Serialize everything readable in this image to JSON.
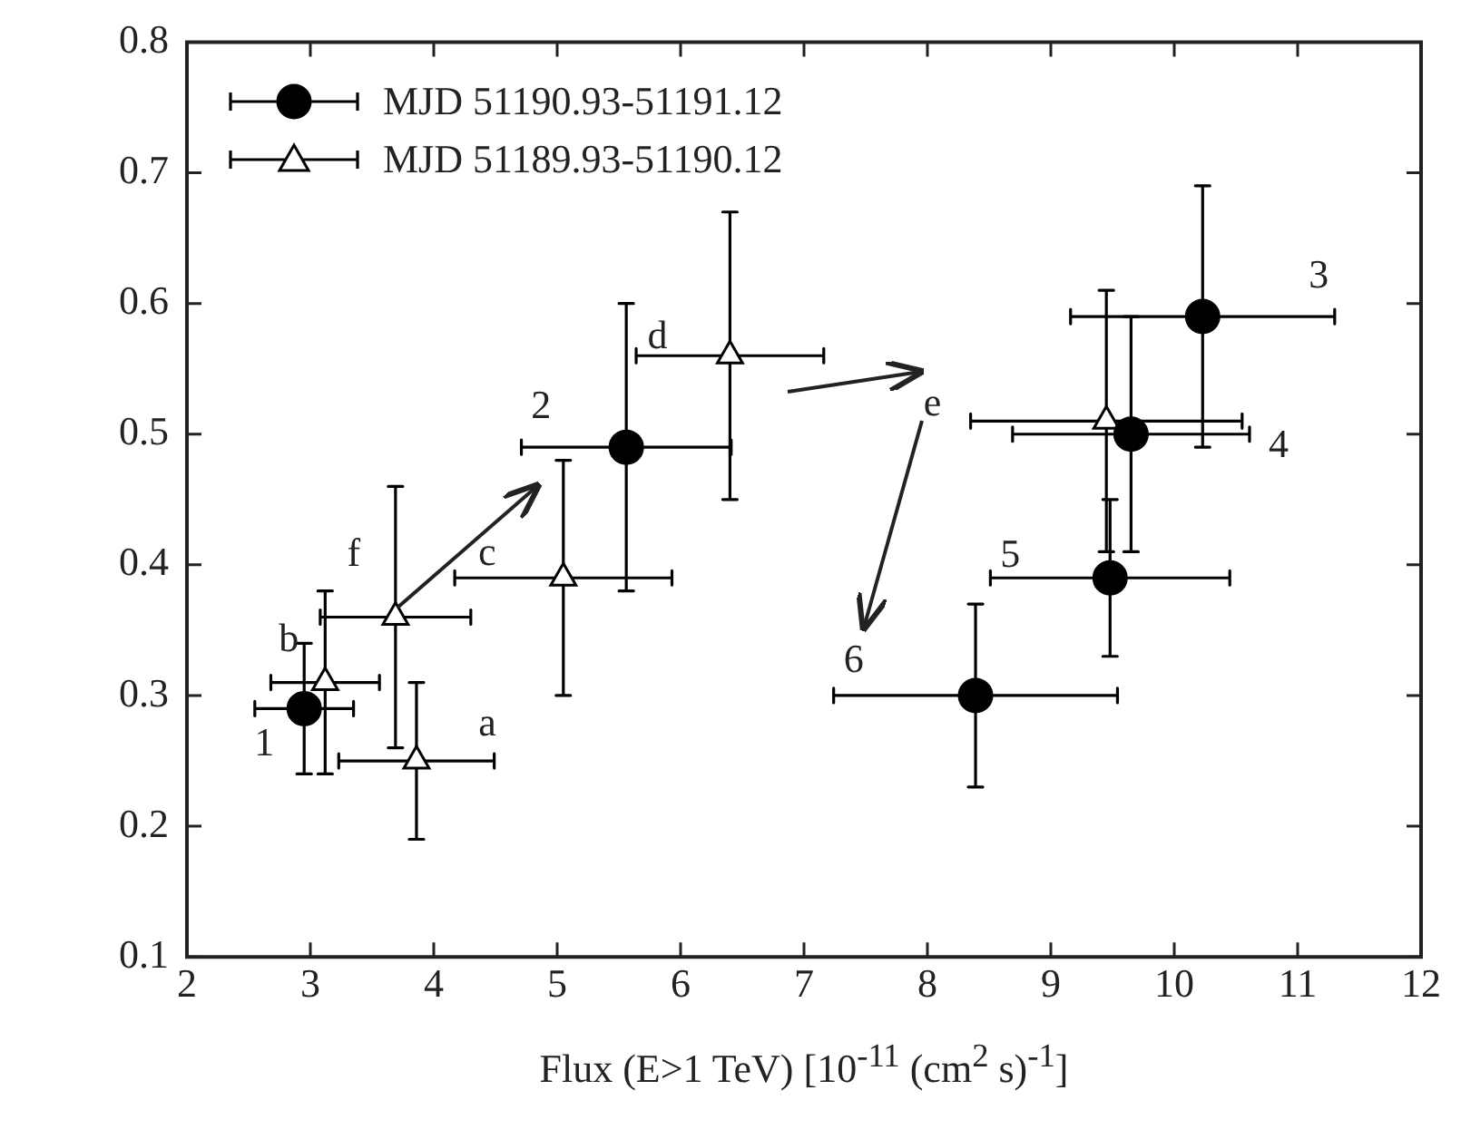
{
  "chart_data": {
    "type": "scatter",
    "xlabel": "Flux (E>1 TeV) [10$^{-11}$ (cm$^{2}$ s)$^{-1}$]",
    "xlim": [
      2,
      12
    ],
    "xticks": [
      2,
      3,
      4,
      5,
      6,
      7,
      8,
      9,
      10,
      11,
      12
    ],
    "ylim": [
      0.1,
      0.8
    ],
    "yticks": [
      0.1,
      0.2,
      0.3,
      0.4,
      0.5,
      0.6,
      0.7,
      0.8
    ],
    "grid": false,
    "legend": "top left",
    "series": [
      {
        "name": "MJD 51190.93-51191.12",
        "color": "#000000",
        "marker": "circle",
        "x": [
          2.95,
          5.56,
          10.23,
          9.65,
          9.48,
          8.39
        ],
        "values": [
          0.29,
          0.49,
          0.59,
          0.5,
          0.39,
          0.3
        ],
        "errors": [
          0.05,
          0.11,
          0.1,
          0.09,
          0.06,
          0.07
        ],
        "xerrors": [
          0.4,
          0.85,
          1.07,
          0.96,
          0.97,
          1.15
        ]
      },
      {
        "name": "MJD 51189.93-51190.12",
        "color": "#000000",
        "marker": "triangle",
        "x": [
          3.86,
          3.12,
          3.69,
          5.05,
          6.4,
          9.45
        ],
        "values": [
          0.25,
          0.31,
          0.36,
          0.39,
          0.56,
          0.51
        ],
        "errors": [
          0.06,
          0.07,
          0.1,
          0.09,
          0.11,
          0.1
        ],
        "xerrors": [
          0.63,
          0.44,
          0.61,
          0.88,
          0.76,
          1.1
        ]
      }
    ],
    "annotations": [
      {
        "text": "1",
        "x": 2.95,
        "y": 0.29
      },
      {
        "text": "2",
        "x": 5.56,
        "y": 0.49
      },
      {
        "text": "3",
        "x": 10.23,
        "y": 0.59
      },
      {
        "text": "4",
        "x": 10.61,
        "y": 0.5
      },
      {
        "text": "5",
        "x": 9.48,
        "y": 0.39
      },
      {
        "text": "6",
        "x": 7.24,
        "y": 0.3
      },
      {
        "text": "a",
        "x": 3.86,
        "y": 0.25
      },
      {
        "text": "b",
        "x": 3.12,
        "y": 0.31
      },
      {
        "text": "f",
        "x": 3.69,
        "y": 0.36
      },
      {
        "text": "c",
        "x": 5.05,
        "y": 0.39
      },
      {
        "text": "d",
        "x": 6.4,
        "y": 0.56
      },
      {
        "text": "e",
        "x": 8.35,
        "y": 0.51
      }
    ]
  }
}
